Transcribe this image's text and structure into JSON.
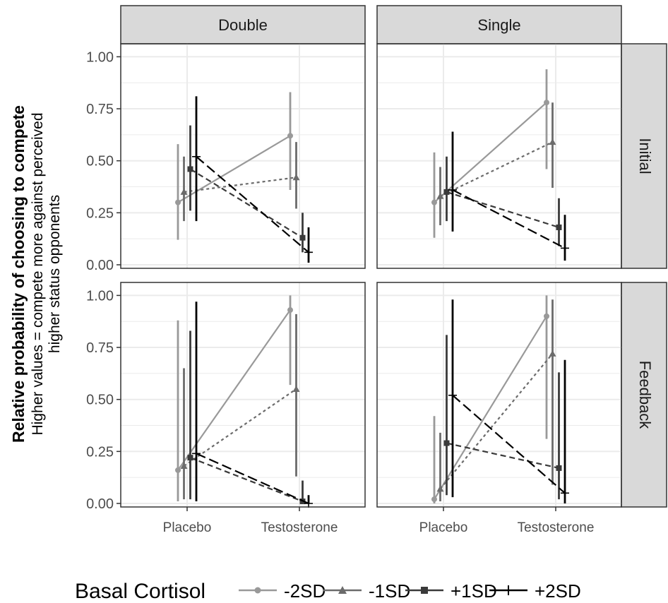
{
  "chart_data": {
    "type": "line",
    "ylabel": "Relative probability of choosing to compete",
    "ylabel_sub1": "Higher values = compete more against perceived",
    "ylabel_sub2": "higher status opponents",
    "col_facets": [
      "Double",
      "Single"
    ],
    "row_facets": [
      "Initial",
      "Feedback"
    ],
    "categories": [
      "Placebo",
      "Testosterone"
    ],
    "y_ticks": [
      "0.00",
      "0.25",
      "0.50",
      "0.75",
      "1.00"
    ],
    "ylim": [
      0,
      1
    ],
    "grid": true,
    "legend": {
      "title": "Basal Cortisol",
      "position": "bottom",
      "entries": [
        "-2SD",
        "-1SD",
        "+1SD",
        "+2SD"
      ]
    },
    "series_styles": [
      {
        "name": "-2SD",
        "color": "#999999",
        "marker": "circle",
        "dash": "solid"
      },
      {
        "name": "-1SD",
        "color": "#6b6b6b",
        "marker": "triangle",
        "dash": "dotted"
      },
      {
        "name": "+1SD",
        "color": "#3a3a3a",
        "marker": "square",
        "dash": "dashed"
      },
      {
        "name": "+2SD",
        "color": "#000000",
        "marker": "plus",
        "dash": "longdash"
      }
    ],
    "panels": [
      {
        "col": "Double",
        "row": "Initial",
        "series": [
          {
            "name": "-2SD",
            "values": [
              0.3,
              0.62
            ],
            "lower": [
              0.12,
              0.36
            ],
            "upper": [
              0.58,
              0.83
            ]
          },
          {
            "name": "-1SD",
            "values": [
              0.35,
              0.42
            ],
            "lower": [
              0.21,
              0.27
            ],
            "upper": [
              0.52,
              0.59
            ]
          },
          {
            "name": "+1SD",
            "values": [
              0.46,
              0.13
            ],
            "lower": [
              0.26,
              0.06
            ],
            "upper": [
              0.67,
              0.25
            ]
          },
          {
            "name": "+2SD",
            "values": [
              0.52,
              0.06
            ],
            "lower": [
              0.21,
              0.01
            ],
            "upper": [
              0.81,
              0.18
            ]
          }
        ]
      },
      {
        "col": "Single",
        "row": "Initial",
        "series": [
          {
            "name": "-2SD",
            "values": [
              0.3,
              0.78
            ],
            "lower": [
              0.13,
              0.46
            ],
            "upper": [
              0.54,
              0.94
            ]
          },
          {
            "name": "-1SD",
            "values": [
              0.33,
              0.59
            ],
            "lower": [
              0.19,
              0.37
            ],
            "upper": [
              0.47,
              0.78
            ]
          },
          {
            "name": "+1SD",
            "values": [
              0.35,
              0.18
            ],
            "lower": [
              0.21,
              0.09
            ],
            "upper": [
              0.52,
              0.32
            ]
          },
          {
            "name": "+2SD",
            "values": [
              0.36,
              0.08
            ],
            "lower": [
              0.16,
              0.02
            ],
            "upper": [
              0.64,
              0.24
            ]
          }
        ]
      },
      {
        "col": "Double",
        "row": "Feedback",
        "series": [
          {
            "name": "-2SD",
            "values": [
              0.16,
              0.93
            ],
            "lower": [
              0.01,
              0.57
            ],
            "upper": [
              0.88,
              1.0
            ]
          },
          {
            "name": "-1SD",
            "values": [
              0.18,
              0.55
            ],
            "lower": [
              0.02,
              0.13
            ],
            "upper": [
              0.65,
              0.91
            ]
          },
          {
            "name": "+1SD",
            "values": [
              0.22,
              0.01
            ],
            "lower": [
              0.02,
              0.0
            ],
            "upper": [
              0.83,
              0.11
            ]
          },
          {
            "name": "+2SD",
            "values": [
              0.24,
              0.0
            ],
            "lower": [
              0.01,
              0.0
            ],
            "upper": [
              0.97,
              0.04
            ]
          }
        ]
      },
      {
        "col": "Single",
        "row": "Feedback",
        "series": [
          {
            "name": "-2SD",
            "values": [
              0.02,
              0.9
            ],
            "lower": [
              0.0,
              0.31
            ],
            "upper": [
              0.42,
              1.0
            ]
          },
          {
            "name": "-1SD",
            "values": [
              0.07,
              0.72
            ],
            "lower": [
              0.01,
              0.09
            ],
            "upper": [
              0.34,
              0.98
            ]
          },
          {
            "name": "+1SD",
            "values": [
              0.29,
              0.17
            ],
            "lower": [
              0.04,
              0.02
            ],
            "upper": [
              0.81,
              0.63
            ]
          },
          {
            "name": "+2SD",
            "values": [
              0.52,
              0.05
            ],
            "lower": [
              0.03,
              0.0
            ],
            "upper": [
              0.98,
              0.69
            ]
          }
        ]
      }
    ]
  }
}
